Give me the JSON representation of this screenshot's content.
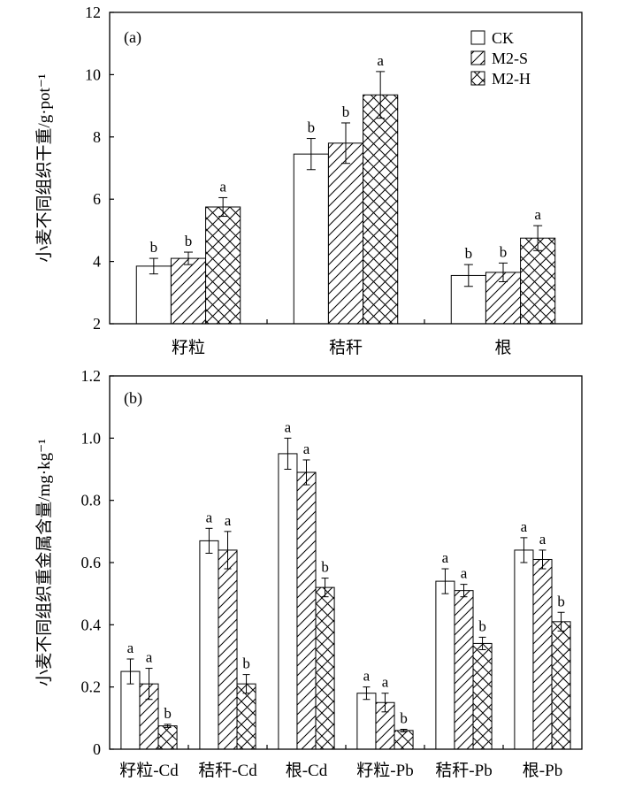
{
  "chart_data": [
    {
      "panel_label": "(a)",
      "type": "bar",
      "xlabel": "",
      "ylabel": "小麦不同组织干重/g·pot⁻¹",
      "ylim": [
        2,
        12
      ],
      "yticks": [
        2,
        4,
        6,
        8,
        10,
        12
      ],
      "ytick_labels": [
        "2",
        "4",
        "6",
        "8",
        "10",
        "12"
      ],
      "categories": [
        "籽粒",
        "秸秆",
        "根"
      ],
      "legend": "top-right",
      "grid": false,
      "series": [
        {
          "name": "CK",
          "fill_pattern": "none",
          "fill": "#ffffff",
          "values": [
            3.85,
            7.45,
            3.55
          ],
          "errors": [
            0.25,
            0.5,
            0.35
          ],
          "letters": [
            "b",
            "b",
            "b"
          ]
        },
        {
          "name": "M2-S",
          "fill_pattern": "diagonal",
          "fill": "#ffffff",
          "values": [
            4.1,
            7.8,
            3.65
          ],
          "errors": [
            0.2,
            0.65,
            0.3
          ],
          "letters": [
            "b",
            "b",
            "b"
          ]
        },
        {
          "name": "M2-H",
          "fill_pattern": "cross",
          "fill": "#ffffff",
          "values": [
            5.75,
            9.35,
            4.75
          ],
          "errors": [
            0.3,
            0.75,
            0.4
          ],
          "letters": [
            "a",
            "a",
            "a"
          ]
        }
      ]
    },
    {
      "panel_label": "(b)",
      "type": "bar",
      "xlabel": "",
      "ylabel": "小麦不同组织重金属含量/mg·kg⁻¹",
      "ylim": [
        0,
        1.2
      ],
      "yticks": [
        0,
        0.2,
        0.4,
        0.6,
        0.8,
        1.0,
        1.2
      ],
      "ytick_labels": [
        "0",
        "0.2",
        "0.4",
        "0.6",
        "0.8",
        "1.0",
        "1.2"
      ],
      "categories": [
        "籽粒-Cd",
        "秸秆-Cd",
        "根-Cd",
        "籽粒-Pb",
        "秸秆-Pb",
        "根-Pb"
      ],
      "legend": "none",
      "grid": false,
      "series": [
        {
          "fill_pattern": "none",
          "fill": "#ffffff",
          "values": [
            0.25,
            0.67,
            0.95,
            0.18,
            0.54,
            0.64
          ],
          "errors": [
            0.04,
            0.04,
            0.05,
            0.02,
            0.04,
            0.04
          ],
          "letters": [
            "a",
            "a",
            "a",
            "a",
            "a",
            "a"
          ]
        },
        {
          "fill_pattern": "diagonal",
          "fill": "#ffffff",
          "values": [
            0.21,
            0.64,
            0.89,
            0.15,
            0.51,
            0.61
          ],
          "errors": [
            0.05,
            0.06,
            0.04,
            0.03,
            0.02,
            0.03
          ],
          "letters": [
            "a",
            "a",
            "a",
            "a",
            "a",
            "a"
          ]
        },
        {
          "fill_pattern": "cross",
          "fill": "#ffffff",
          "values": [
            0.075,
            0.21,
            0.52,
            0.06,
            0.34,
            0.41
          ],
          "errors": [
            0.005,
            0.03,
            0.03,
            0.004,
            0.02,
            0.03
          ],
          "letters": [
            "b",
            "b",
            "b",
            "b",
            "b",
            "b"
          ]
        }
      ]
    }
  ]
}
